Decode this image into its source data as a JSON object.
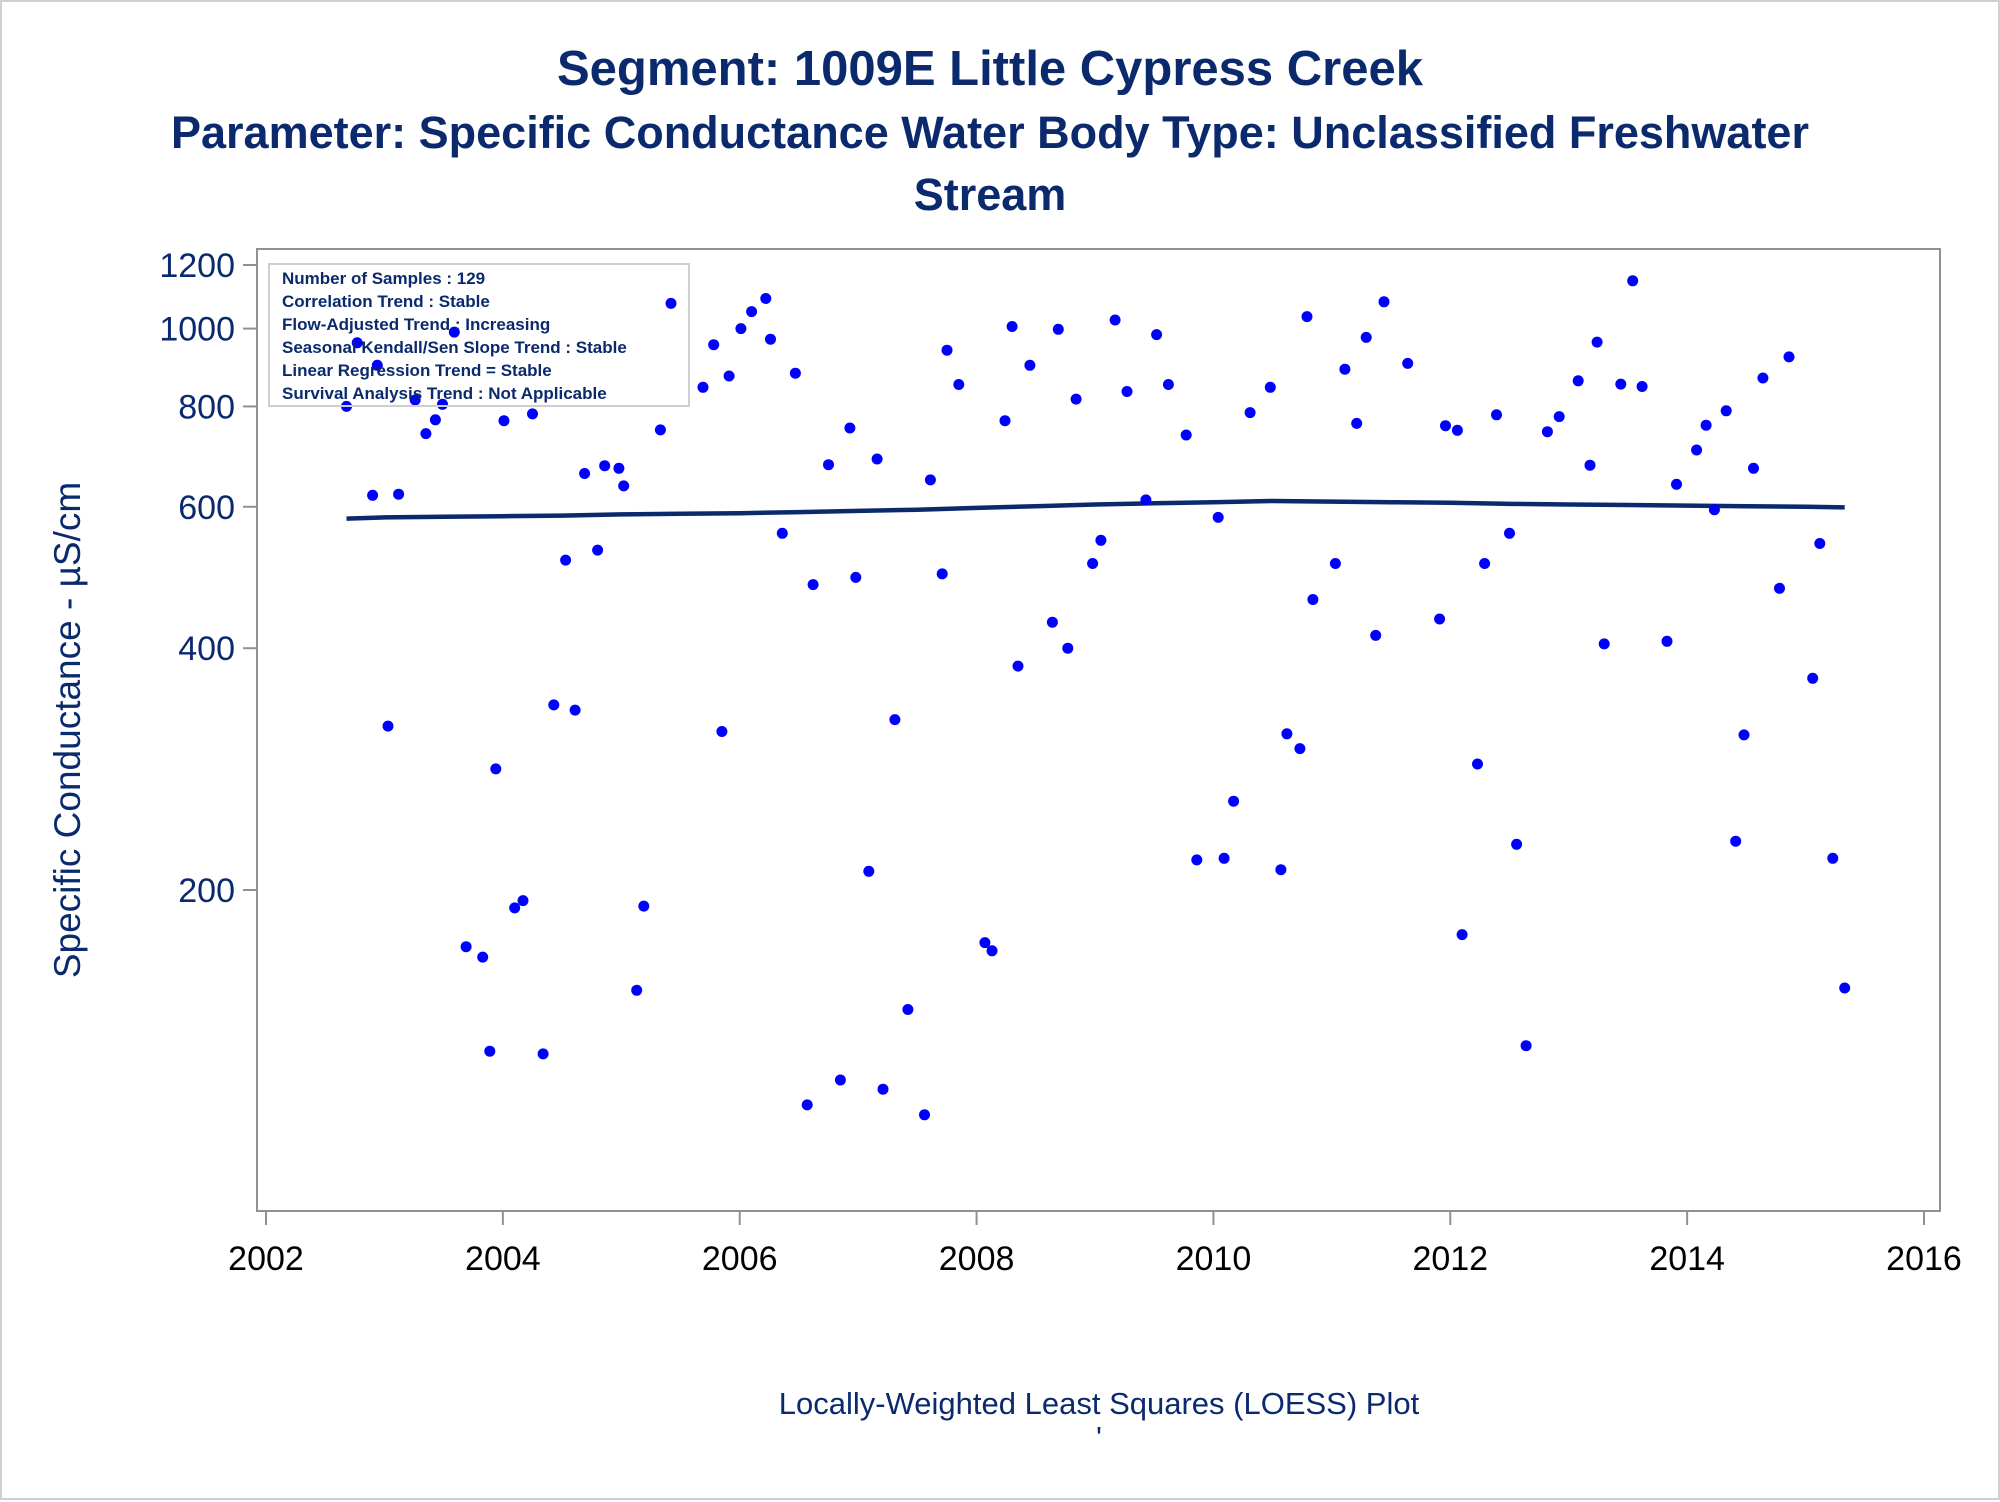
{
  "colors": {
    "title": "#0b2a6e",
    "points": "#0000ff",
    "loess": "#0b2a6e",
    "frame": "#909090"
  },
  "chart_data": {
    "type": "scatter",
    "title": "Segment: 1009E  Little Cypress Creek",
    "subtitle_lines": [
      "Parameter: Specific Conductance   Water Body Type: Unclassified Freshwater",
      "Stream"
    ],
    "ylabel": "Specific Conductance -  µS/cm",
    "xlabel": "",
    "footnote": "Locally-Weighted Least Squares (LOESS) Plot",
    "footnote_mark": "'",
    "y_scale": "log",
    "ylim": [
      100,
      1200
    ],
    "xlim": [
      2002,
      2016
    ],
    "xticks": [
      2002,
      2004,
      2006,
      2008,
      2010,
      2012,
      2014,
      2016
    ],
    "ytick_labels": [
      "1200",
      "1000",
      "800",
      "600",
      "400",
      "200"
    ],
    "yticks": [
      1200,
      1000,
      800,
      600,
      400,
      200
    ],
    "legend_position": "top-left",
    "stats": [
      "Number of Samples : 129",
      "Correlation Trend : Stable",
      "Flow-Adjusted Trend : Increasing",
      "Seasonal Kendall/Sen Slope Trend : Stable",
      "Linear Regression Trend = Stable",
      "Survival Analysis Trend : Not Applicable"
    ],
    "grid": false,
    "series": [
      {
        "kind": "points",
        "points": [
          [
            2002.68,
            800
          ],
          [
            2002.77,
            960
          ],
          [
            2002.9,
            620
          ],
          [
            2002.94,
            900
          ],
          [
            2003.03,
            320
          ],
          [
            2003.12,
            622
          ],
          [
            2003.26,
            815
          ],
          [
            2003.35,
            740
          ],
          [
            2003.43,
            770
          ],
          [
            2003.49,
            805
          ],
          [
            2003.59,
            990
          ],
          [
            2003.69,
            170
          ],
          [
            2003.83,
            165
          ],
          [
            2003.89,
            126
          ],
          [
            2003.94,
            283
          ],
          [
            2004.01,
            768
          ],
          [
            2004.1,
            190
          ],
          [
            2004.17,
            194
          ],
          [
            2004.25,
            783
          ],
          [
            2004.34,
            125
          ],
          [
            2004.43,
            340
          ],
          [
            2004.53,
            515
          ],
          [
            2004.61,
            335
          ],
          [
            2004.69,
            660
          ],
          [
            2004.8,
            530
          ],
          [
            2004.86,
            675
          ],
          [
            2004.98,
            670
          ],
          [
            2005.02,
            637
          ],
          [
            2005.13,
            150
          ],
          [
            2005.19,
            191
          ],
          [
            2005.33,
            748
          ],
          [
            2005.42,
            1075
          ],
          [
            2005.69,
            845
          ],
          [
            2005.78,
            955
          ],
          [
            2005.85,
            315
          ],
          [
            2005.91,
            873
          ],
          [
            2006.01,
            1000
          ],
          [
            2006.1,
            1050
          ],
          [
            2006.22,
            1090
          ],
          [
            2006.26,
            970
          ],
          [
            2006.36,
            556
          ],
          [
            2006.47,
            880
          ],
          [
            2006.57,
            108
          ],
          [
            2006.62,
            480
          ],
          [
            2006.75,
            677
          ],
          [
            2006.85,
            116
          ],
          [
            2006.93,
            752
          ],
          [
            2006.98,
            490
          ],
          [
            2007.09,
            211
          ],
          [
            2007.16,
            688
          ],
          [
            2007.21,
            113
          ],
          [
            2007.31,
            326
          ],
          [
            2007.42,
            142
          ],
          [
            2007.56,
            105
          ],
          [
            2007.61,
            648
          ],
          [
            2007.71,
            495
          ],
          [
            2007.75,
            940
          ],
          [
            2007.85,
            852
          ],
          [
            2008.07,
            172
          ],
          [
            2008.13,
            168
          ],
          [
            2008.24,
            768
          ],
          [
            2008.3,
            1006
          ],
          [
            2008.35,
            380
          ],
          [
            2008.45,
            900
          ],
          [
            2008.64,
            431
          ],
          [
            2008.69,
            998
          ],
          [
            2008.77,
            400
          ],
          [
            2008.84,
            817
          ],
          [
            2008.98,
            510
          ],
          [
            2009.05,
            545
          ],
          [
            2009.17,
            1025
          ],
          [
            2009.27,
            835
          ],
          [
            2009.43,
            612
          ],
          [
            2009.52,
            983
          ],
          [
            2009.62,
            852
          ],
          [
            2009.77,
            737
          ],
          [
            2009.86,
            218
          ],
          [
            2010.04,
            582
          ],
          [
            2010.09,
            219
          ],
          [
            2010.17,
            258
          ],
          [
            2010.31,
            786
          ],
          [
            2010.48,
            845
          ],
          [
            2010.57,
            212
          ],
          [
            2010.62,
            313
          ],
          [
            2010.73,
            300
          ],
          [
            2010.79,
            1035
          ],
          [
            2010.84,
            460
          ],
          [
            2011.03,
            510
          ],
          [
            2011.11,
            890
          ],
          [
            2011.21,
            762
          ],
          [
            2011.29,
            975
          ],
          [
            2011.37,
            415
          ],
          [
            2011.44,
            1080
          ],
          [
            2011.64,
            905
          ],
          [
            2011.91,
            435
          ],
          [
            2011.96,
            757
          ],
          [
            2012.06,
            747
          ],
          [
            2012.1,
            176
          ],
          [
            2012.23,
            287
          ],
          [
            2012.29,
            510
          ],
          [
            2012.39,
            781
          ],
          [
            2012.5,
            556
          ],
          [
            2012.56,
            228
          ],
          [
            2012.64,
            128
          ],
          [
            2012.82,
            744
          ],
          [
            2012.92,
            777
          ],
          [
            2013.08,
            861
          ],
          [
            2013.18,
            676
          ],
          [
            2013.24,
            962
          ],
          [
            2013.3,
            405
          ],
          [
            2013.44,
            853
          ],
          [
            2013.54,
            1147
          ],
          [
            2013.62,
            847
          ],
          [
            2013.83,
            408
          ],
          [
            2013.91,
            640
          ],
          [
            2014.08,
            706
          ],
          [
            2014.16,
            758
          ],
          [
            2014.23,
            595
          ],
          [
            2014.33,
            790
          ],
          [
            2014.41,
            230
          ],
          [
            2014.48,
            312
          ],
          [
            2014.56,
            670
          ],
          [
            2014.64,
            868
          ],
          [
            2014.78,
            475
          ],
          [
            2014.86,
            922
          ],
          [
            2015.06,
            367
          ],
          [
            2015.12,
            540
          ],
          [
            2015.23,
            219
          ],
          [
            2015.33,
            151
          ]
        ]
      },
      {
        "kind": "loess",
        "points": [
          [
            2002.68,
            580
          ],
          [
            2003.0,
            582
          ],
          [
            2003.5,
            583
          ],
          [
            2004.0,
            584
          ],
          [
            2004.5,
            585
          ],
          [
            2005.0,
            587
          ],
          [
            2005.5,
            588
          ],
          [
            2006.0,
            589
          ],
          [
            2006.5,
            591
          ],
          [
            2007.0,
            593
          ],
          [
            2007.5,
            595
          ],
          [
            2008.0,
            598
          ],
          [
            2008.5,
            601
          ],
          [
            2009.0,
            604
          ],
          [
            2009.5,
            606
          ],
          [
            2010.0,
            608
          ],
          [
            2010.5,
            610
          ],
          [
            2011.0,
            609
          ],
          [
            2011.5,
            608
          ],
          [
            2012.0,
            607
          ],
          [
            2012.5,
            605
          ],
          [
            2013.0,
            604
          ],
          [
            2013.5,
            603
          ],
          [
            2014.0,
            602
          ],
          [
            2014.5,
            601
          ],
          [
            2015.0,
            600
          ],
          [
            2015.33,
            599
          ]
        ]
      }
    ]
  }
}
